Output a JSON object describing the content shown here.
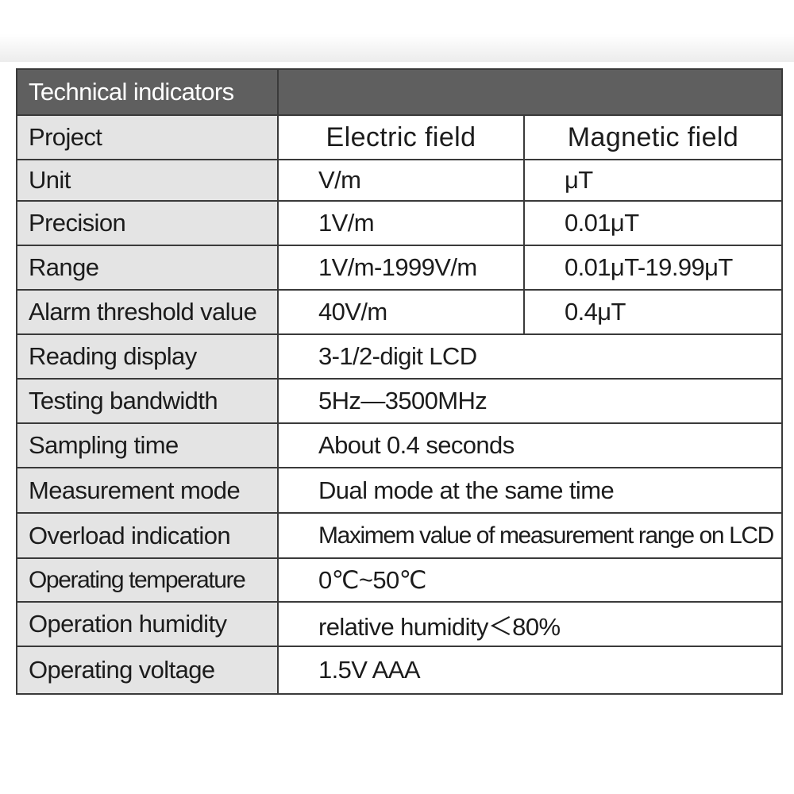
{
  "header": {
    "title": "Technical indicators"
  },
  "columns": {
    "label": "Project",
    "electric": "Electric field",
    "magnetic": "Magnetic field"
  },
  "split_rows": [
    {
      "label": "Unit",
      "electric": "V/m",
      "magnetic": "μT"
    },
    {
      "label": "Precision",
      "electric": "1V/m",
      "magnetic": "0.01μT"
    },
    {
      "label": "Range",
      "electric": "1V/m-1999V/m",
      "magnetic": "0.01μT-19.99μT"
    },
    {
      "label": "Alarm threshold value",
      "electric": "40V/m",
      "magnetic": "0.4μT"
    }
  ],
  "rows": [
    {
      "label": "Reading display",
      "value": "3-1/2-digit LCD"
    },
    {
      "label": "Testing bandwidth",
      "value": "5Hz—3500MHz"
    },
    {
      "label": "Sampling time",
      "value": "About 0.4 seconds"
    },
    {
      "label": "Measurement mode",
      "value": "Dual mode at the same time"
    },
    {
      "label": "Overload indication",
      "value": "Maximem value of measurement range on LCD"
    },
    {
      "label": "Operating temperature",
      "value": "0℃~50℃"
    },
    {
      "label": "Operation humidity",
      "value": "relative humidity＜80%"
    },
    {
      "label": "Operating voltage",
      "value": "1.5V AAA"
    }
  ]
}
